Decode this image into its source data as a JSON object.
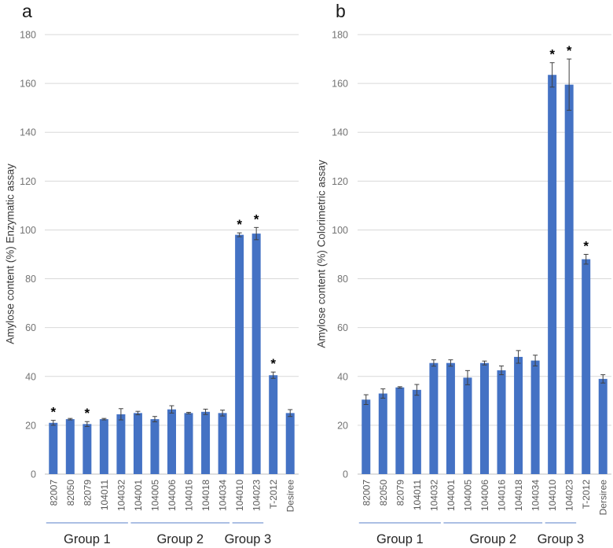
{
  "colors": {
    "bar": "#4472C4",
    "error_bar": "#404040",
    "gridline": "#D9D9D9",
    "axis_line": "#BFBFBF",
    "tick_label": "#737373",
    "category_label": "#595959",
    "group_label": "#262626",
    "group_underline": "#8FAADC",
    "asterisk": "#000000"
  },
  "chart_data": [
    {
      "type": "bar",
      "panel": "a",
      "ylabel": "Amylose content (%) Enzymatic assay",
      "xlabel": "",
      "ylim": [
        0,
        180
      ],
      "ytick_interval": 20,
      "yticks": [
        0,
        20,
        40,
        60,
        80,
        100,
        120,
        140,
        160,
        180
      ],
      "grid": true,
      "legend": false,
      "categories": [
        "82007",
        "82050",
        "82079",
        "104011",
        "104032",
        "104001",
        "104005",
        "104006",
        "104016",
        "104018",
        "104034",
        "104010",
        "104023",
        "T-2012",
        "Desiree"
      ],
      "values": [
        21,
        22.5,
        20.5,
        22.5,
        24.5,
        25,
        22.5,
        26.5,
        25,
        25.5,
        25,
        98,
        98.5,
        40.5,
        25
      ],
      "errors": [
        1,
        0.3,
        1,
        0.3,
        2.3,
        0.7,
        1.1,
        1.5,
        0.3,
        1.1,
        1.2,
        0.8,
        2.5,
        1.3,
        1.4
      ],
      "significant_categories": [
        "82007",
        "82079",
        "104010",
        "104023",
        "T-2012"
      ],
      "groups": [
        {
          "label": "Group 1",
          "from": 0,
          "to": 4
        },
        {
          "label": "Group 2",
          "from": 5,
          "to": 10
        },
        {
          "label": "Group 3",
          "from": 11,
          "to": 12
        }
      ]
    },
    {
      "type": "bar",
      "panel": "b",
      "ylabel": "Amylose content (%) Colorimetric assay",
      "xlabel": "",
      "ylim": [
        0,
        180
      ],
      "ytick_interval": 20,
      "yticks": [
        0,
        20,
        40,
        60,
        80,
        100,
        120,
        140,
        160,
        180
      ],
      "grid": true,
      "legend": false,
      "categories": [
        "82007",
        "82050",
        "82079",
        "104011",
        "104032",
        "104001",
        "104005",
        "104006",
        "104016",
        "104018",
        "104034",
        "104010",
        "104023",
        "T-2012",
        "Dersiree"
      ],
      "values": [
        30.5,
        33,
        35.5,
        34.5,
        45.5,
        45.5,
        39.5,
        45.5,
        42.5,
        48,
        46.5,
        163.5,
        159.5,
        88,
        39
      ],
      "errors": [
        2,
        1.9,
        0.3,
        2.2,
        1.3,
        1.3,
        2.9,
        0.8,
        1.8,
        2.6,
        2.2,
        5,
        10.5,
        2,
        1.7
      ],
      "significant_categories": [
        "104010",
        "104023",
        "T-2012"
      ],
      "groups": [
        {
          "label": "Group 1",
          "from": 0,
          "to": 4
        },
        {
          "label": "Group 2",
          "from": 5,
          "to": 10
        },
        {
          "label": "Group 3",
          "from": 11,
          "to": 12
        }
      ]
    }
  ]
}
